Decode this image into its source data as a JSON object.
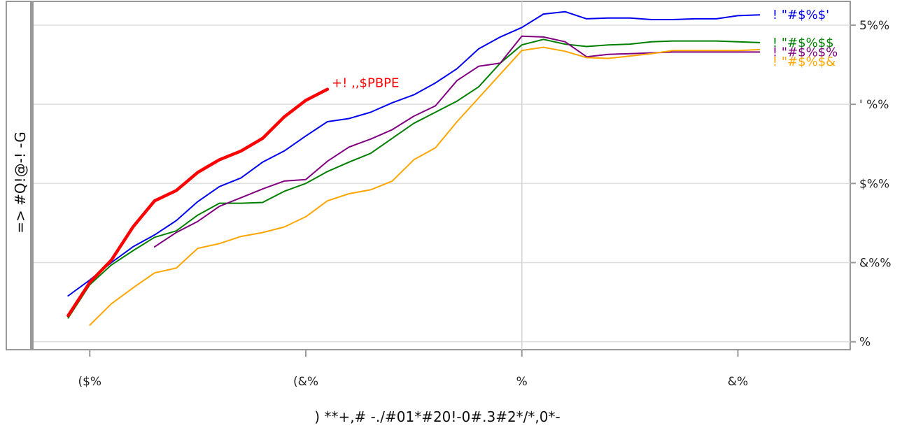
{
  "chart_data": {
    "type": "line",
    "title": "",
    "xlabel": ") **+,# -./#01*#20!-0#.3#2*/*,0*-",
    "ylabel": "=> #Q!@-! -G",
    "x_ticks": [
      {
        "value": -10,
        "label": "($%"
      },
      {
        "value": -5,
        "label": "(&%"
      },
      {
        "value": 0,
        "label": "%"
      },
      {
        "value": 5,
        "label": "&%"
      }
    ],
    "y_ticks": [
      {
        "value": 0,
        "label": "%"
      },
      {
        "value": 1,
        "label": "&%%"
      },
      {
        "value": 2,
        "label": "$%%"
      },
      {
        "value": 3,
        "label": "' %%"
      },
      {
        "value": 4,
        "label": "5%%"
      }
    ],
    "xlim": [
      -11.3,
      7.6
    ],
    "ylim": [
      -0.1,
      4.3
    ],
    "series": [
      {
        "name": "! \"#$%$'",
        "color": "#0000ee",
        "width": 2,
        "label_color": "#0000ee",
        "points": [
          [
            -10.5,
            0.58
          ],
          [
            -10,
            0.78
          ],
          [
            -9.5,
            1.0
          ],
          [
            -9,
            1.2
          ],
          [
            -8.5,
            1.35
          ],
          [
            -8,
            1.53
          ],
          [
            -7.5,
            1.77
          ],
          [
            -7,
            1.96
          ],
          [
            -6.5,
            2.07
          ],
          [
            -6,
            2.27
          ],
          [
            -5.5,
            2.41
          ],
          [
            -5,
            2.6
          ],
          [
            -4.5,
            2.78
          ],
          [
            -4,
            2.82
          ],
          [
            -3.5,
            2.9
          ],
          [
            -3,
            3.02
          ],
          [
            -2.5,
            3.12
          ],
          [
            -2,
            3.27
          ],
          [
            -1.5,
            3.45
          ],
          [
            -1,
            3.7
          ],
          [
            -0.5,
            3.85
          ],
          [
            0,
            3.97
          ],
          [
            0.5,
            4.14
          ],
          [
            1,
            4.17
          ],
          [
            1.5,
            4.08
          ],
          [
            2,
            4.09
          ],
          [
            2.5,
            4.09
          ],
          [
            3,
            4.07
          ],
          [
            3.5,
            4.07
          ],
          [
            4,
            4.08
          ],
          [
            4.5,
            4.08
          ],
          [
            5,
            4.12
          ],
          [
            5.5,
            4.13
          ]
        ]
      },
      {
        "name": "! \"#$%$$",
        "color": "#008000",
        "width": 2,
        "label_color": "#008000",
        "points": [
          [
            -10.5,
            0.3
          ],
          [
            -10,
            0.72
          ],
          [
            -9.5,
            0.97
          ],
          [
            -9,
            1.15
          ],
          [
            -8.5,
            1.32
          ],
          [
            -8,
            1.4
          ],
          [
            -7.5,
            1.6
          ],
          [
            -7,
            1.75
          ],
          [
            -6.5,
            1.75
          ],
          [
            -6,
            1.76
          ],
          [
            -5.5,
            1.9
          ],
          [
            -5,
            2.0
          ],
          [
            -4.5,
            2.15
          ],
          [
            -4,
            2.27
          ],
          [
            -3.5,
            2.38
          ],
          [
            -3,
            2.57
          ],
          [
            -2.5,
            2.76
          ],
          [
            -2,
            2.9
          ],
          [
            -1.5,
            3.04
          ],
          [
            -1,
            3.22
          ],
          [
            -0.5,
            3.52
          ],
          [
            0,
            3.75
          ],
          [
            0.5,
            3.82
          ],
          [
            1,
            3.76
          ],
          [
            1.5,
            3.73
          ],
          [
            2,
            3.75
          ],
          [
            2.5,
            3.76
          ],
          [
            3,
            3.79
          ],
          [
            3.5,
            3.8
          ],
          [
            4,
            3.8
          ],
          [
            4.5,
            3.8
          ],
          [
            5,
            3.79
          ],
          [
            5.5,
            3.78
          ]
        ]
      },
      {
        "name": "! \"#$%$%",
        "color": "#800080",
        "width": 2,
        "label_color": "#800080",
        "points": [
          [
            -8.5,
            1.2
          ],
          [
            -8,
            1.38
          ],
          [
            -7.5,
            1.52
          ],
          [
            -7,
            1.71
          ],
          [
            -6.5,
            1.82
          ],
          [
            -6,
            1.93
          ],
          [
            -5.5,
            2.03
          ],
          [
            -5,
            2.05
          ],
          [
            -4.5,
            2.28
          ],
          [
            -4,
            2.46
          ],
          [
            -3.5,
            2.56
          ],
          [
            -3,
            2.68
          ],
          [
            -2.5,
            2.85
          ],
          [
            -2,
            2.98
          ],
          [
            -1.5,
            3.3
          ],
          [
            -1,
            3.48
          ],
          [
            -0.5,
            3.52
          ],
          [
            0,
            3.86
          ],
          [
            0.5,
            3.85
          ],
          [
            1,
            3.79
          ],
          [
            1.5,
            3.6
          ],
          [
            2,
            3.63
          ],
          [
            2.5,
            3.64
          ],
          [
            3,
            3.65
          ],
          [
            3.5,
            3.66
          ],
          [
            4,
            3.66
          ],
          [
            4.5,
            3.66
          ],
          [
            5,
            3.66
          ],
          [
            5.5,
            3.66
          ]
        ]
      },
      {
        "name": "! \"#$%$&",
        "color": "#ffa500",
        "width": 2,
        "label_color": "#ffa500",
        "points": [
          [
            -10,
            0.21
          ],
          [
            -9.5,
            0.48
          ],
          [
            -9,
            0.68
          ],
          [
            -8.5,
            0.87
          ],
          [
            -8,
            0.93
          ],
          [
            -7.5,
            1.18
          ],
          [
            -7,
            1.24
          ],
          [
            -6.5,
            1.33
          ],
          [
            -6,
            1.38
          ],
          [
            -5.5,
            1.45
          ],
          [
            -5,
            1.58
          ],
          [
            -4.5,
            1.78
          ],
          [
            -4,
            1.87
          ],
          [
            -3.5,
            1.92
          ],
          [
            -3,
            2.03
          ],
          [
            -2.5,
            2.3
          ],
          [
            -2,
            2.45
          ],
          [
            -1.5,
            2.78
          ],
          [
            -1,
            3.08
          ],
          [
            -0.5,
            3.38
          ],
          [
            0,
            3.68
          ],
          [
            0.5,
            3.72
          ],
          [
            1,
            3.67
          ],
          [
            1.5,
            3.59
          ],
          [
            2,
            3.58
          ],
          [
            2.5,
            3.61
          ],
          [
            3,
            3.64
          ],
          [
            3.5,
            3.68
          ],
          [
            4,
            3.68
          ],
          [
            4.5,
            3.68
          ],
          [
            5,
            3.68
          ],
          [
            5.5,
            3.69
          ]
        ]
      },
      {
        "name": "+! ,,$PBPE",
        "color": "#ff0000",
        "width": 4.5,
        "label_color": "#ff0000",
        "points": [
          [
            -10.5,
            0.33
          ],
          [
            -10,
            0.75
          ],
          [
            -9.5,
            1.03
          ],
          [
            -9,
            1.45
          ],
          [
            -8.5,
            1.78
          ],
          [
            -8,
            1.91
          ],
          [
            -7.5,
            2.14
          ],
          [
            -7,
            2.3
          ],
          [
            -6.5,
            2.41
          ],
          [
            -6,
            2.57
          ],
          [
            -5.5,
            2.84
          ],
          [
            -5,
            3.05
          ],
          [
            -4.5,
            3.19
          ]
        ]
      }
    ],
    "end_labels": [
      {
        "series": 0,
        "text": "! \"#$%$'",
        "x": 5.8,
        "y": 4.13
      },
      {
        "series": 1,
        "text": "! \"#$%$$",
        "x": 5.8,
        "y": 3.78
      },
      {
        "series": 2,
        "text": "! \"#$%$%",
        "x": 5.8,
        "y": 3.66
      },
      {
        "series": 3,
        "text": "! \"#$%$&",
        "x": 5.8,
        "y": 3.54
      },
      {
        "series": 4,
        "text": "+! ,,$PBPE",
        "x": -4.4,
        "y": 3.27
      }
    ],
    "grid": true,
    "legend": "none"
  }
}
